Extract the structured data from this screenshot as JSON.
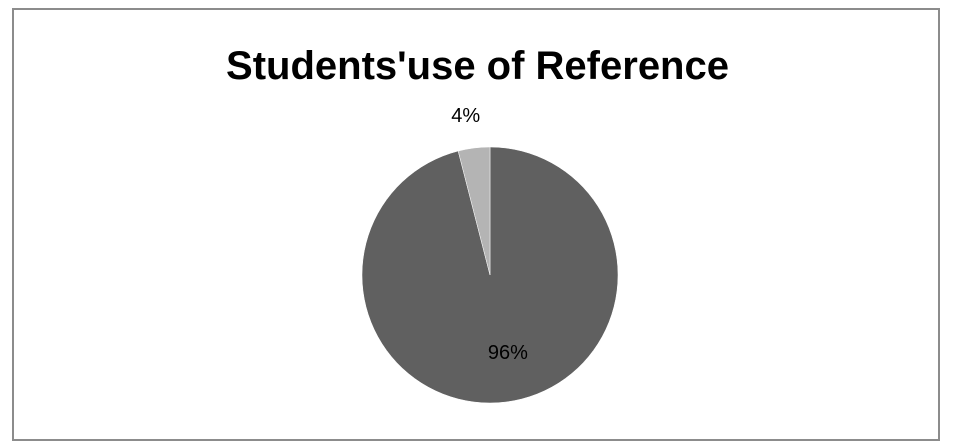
{
  "chart_data": {
    "type": "pie",
    "title": "Students'use of Reference",
    "slices": [
      {
        "label": "96%",
        "value": 96,
        "color": "#606060"
      },
      {
        "label": "4%",
        "value": 4,
        "color": "#b4b4b4"
      }
    ],
    "legend": false
  }
}
